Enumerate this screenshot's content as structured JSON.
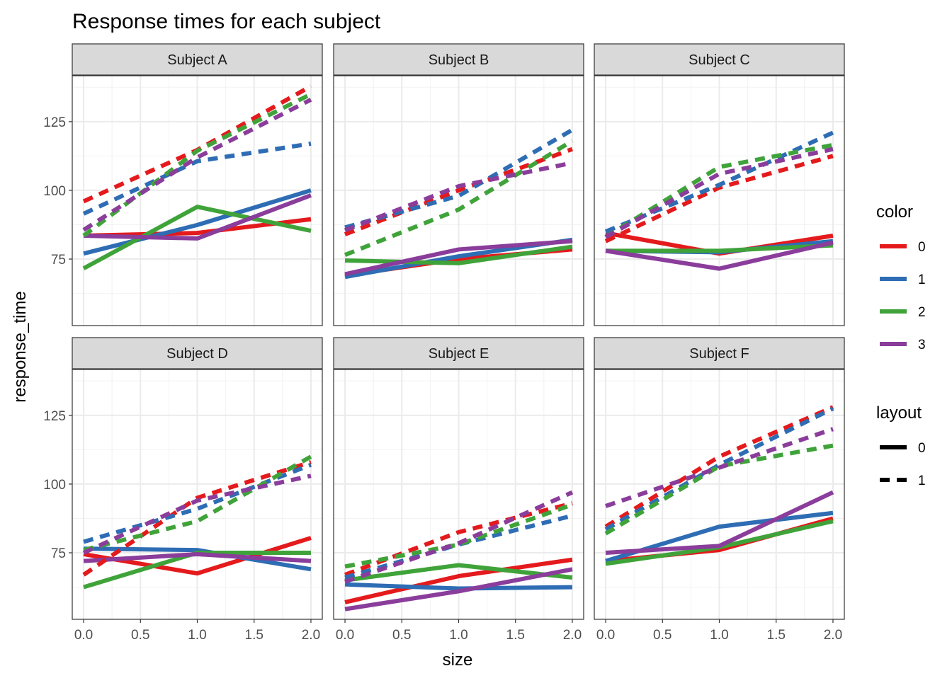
{
  "chart_data": {
    "type": "line",
    "title": "Response times for each subject",
    "xlabel": "size",
    "ylabel": "response_time",
    "x": [
      0,
      1,
      2
    ],
    "xlim": [
      -0.1,
      2.1
    ],
    "ylim": [
      50.8,
      141.7
    ],
    "xticks": [
      "0.0",
      "0.5",
      "1.0",
      "1.5",
      "2.0"
    ],
    "xtick_values": [
      0,
      0.5,
      1,
      1.5,
      2
    ],
    "yticks": [
      "75",
      "100",
      "125"
    ],
    "ytick_values": [
      75,
      100,
      125
    ],
    "grid": true,
    "legend_placement": "right",
    "legends": [
      {
        "title": "color",
        "entries": [
          "0",
          "1",
          "2",
          "3"
        ]
      },
      {
        "title": "layout",
        "entries": [
          "0",
          "1"
        ]
      }
    ],
    "colors": {
      "0": "#E41A1C",
      "1": "#2E6DB4",
      "2": "#3FA33A",
      "3": "#8A3D9B"
    },
    "linetypes": {
      "0": "solid",
      "1": "dashed"
    },
    "panels": [
      {
        "name": "Subject A",
        "series": [
          {
            "color": "0",
            "layout": "0",
            "values": [
              83.5,
              84.5,
              89.5
            ]
          },
          {
            "color": "1",
            "layout": "0",
            "values": [
              77,
              87.4,
              100
            ]
          },
          {
            "color": "2",
            "layout": "0",
            "values": [
              71.6,
              94,
              85.3
            ]
          },
          {
            "color": "3",
            "layout": "0",
            "values": [
              83.5,
              82.5,
              98.2
            ]
          },
          {
            "color": "0",
            "layout": "1",
            "values": [
              96,
              114.7,
              137.9
            ]
          },
          {
            "color": "1",
            "layout": "1",
            "values": [
              91.5,
              110.6,
              117
            ]
          },
          {
            "color": "2",
            "layout": "1",
            "values": [
              83.5,
              114.4,
              135
            ]
          },
          {
            "color": "3",
            "layout": "1",
            "values": [
              85.6,
              112,
              133
            ]
          }
        ]
      },
      {
        "name": "Subject B",
        "series": [
          {
            "color": "0",
            "layout": "0",
            "values": [
              69,
              75,
              78.5
            ]
          },
          {
            "color": "1",
            "layout": "0",
            "values": [
              68.5,
              76,
              82
            ]
          },
          {
            "color": "2",
            "layout": "0",
            "values": [
              74.5,
              73.5,
              79.5
            ]
          },
          {
            "color": "3",
            "layout": "0",
            "values": [
              69.5,
              78.5,
              81.5
            ]
          },
          {
            "color": "0",
            "layout": "1",
            "values": [
              84,
              100,
              115
            ]
          },
          {
            "color": "1",
            "layout": "1",
            "values": [
              86.5,
              98,
              122
            ]
          },
          {
            "color": "2",
            "layout": "1",
            "values": [
              76.5,
              93,
              118
            ]
          },
          {
            "color": "3",
            "layout": "1",
            "values": [
              85.5,
              101.5,
              110
            ]
          }
        ]
      },
      {
        "name": "Subject C",
        "series": [
          {
            "color": "0",
            "layout": "0",
            "values": [
              84.5,
              77,
              83.5
            ]
          },
          {
            "color": "1",
            "layout": "0",
            "values": [
              78,
              77.5,
              81.5
            ]
          },
          {
            "color": "2",
            "layout": "0",
            "values": [
              78,
              78,
              80
            ]
          },
          {
            "color": "3",
            "layout": "0",
            "values": [
              78,
              71.5,
              81
            ]
          },
          {
            "color": "0",
            "layout": "1",
            "values": [
              81.5,
              101,
              112.5
            ]
          },
          {
            "color": "1",
            "layout": "1",
            "values": [
              85,
              102,
              121
            ]
          },
          {
            "color": "2",
            "layout": "1",
            "values": [
              83,
              108.5,
              116.5
            ]
          },
          {
            "color": "3",
            "layout": "1",
            "values": [
              83,
              106,
              115
            ]
          }
        ]
      },
      {
        "name": "Subject D",
        "series": [
          {
            "color": "0",
            "layout": "0",
            "values": [
              74.5,
              67.5,
              80.4
            ]
          },
          {
            "color": "1",
            "layout": "0",
            "values": [
              76.5,
              76,
              69
            ]
          },
          {
            "color": "2",
            "layout": "0",
            "values": [
              62.5,
              75,
              75
            ]
          },
          {
            "color": "3",
            "layout": "0",
            "values": [
              72,
              74.5,
              72
            ]
          },
          {
            "color": "0",
            "layout": "1",
            "values": [
              67,
              95,
              108
            ]
          },
          {
            "color": "1",
            "layout": "1",
            "values": [
              79,
              91,
              107
            ]
          },
          {
            "color": "2",
            "layout": "1",
            "values": [
              76,
              86.5,
              110
            ]
          },
          {
            "color": "3",
            "layout": "1",
            "values": [
              75,
              94,
              103
            ]
          }
        ]
      },
      {
        "name": "Subject E",
        "series": [
          {
            "color": "0",
            "layout": "0",
            "values": [
              57,
              66.5,
              72.5
            ]
          },
          {
            "color": "1",
            "layout": "0",
            "values": [
              63.5,
              62,
              62.5
            ]
          },
          {
            "color": "2",
            "layout": "0",
            "values": [
              65,
              70.5,
              66
            ]
          },
          {
            "color": "3",
            "layout": "0",
            "values": [
              54.5,
              61,
              69
            ]
          },
          {
            "color": "0",
            "layout": "1",
            "values": [
              67,
              82.5,
              93
            ]
          },
          {
            "color": "1",
            "layout": "1",
            "values": [
              66,
              78,
              88.5
            ]
          },
          {
            "color": "2",
            "layout": "1",
            "values": [
              70,
              78,
              92.5
            ]
          },
          {
            "color": "3",
            "layout": "1",
            "values": [
              64.5,
              78.5,
              97
            ]
          }
        ]
      },
      {
        "name": "Subject F",
        "series": [
          {
            "color": "0",
            "layout": "0",
            "values": [
              72,
              76,
              87.5
            ]
          },
          {
            "color": "1",
            "layout": "0",
            "values": [
              72,
              84.5,
              89.5
            ]
          },
          {
            "color": "2",
            "layout": "0",
            "values": [
              71,
              77,
              86.5
            ]
          },
          {
            "color": "3",
            "layout": "0",
            "values": [
              75,
              77.5,
              97
            ]
          },
          {
            "color": "0",
            "layout": "1",
            "values": [
              84.5,
              110,
              128
            ]
          },
          {
            "color": "1",
            "layout": "1",
            "values": [
              83.5,
              107,
              127.5
            ]
          },
          {
            "color": "2",
            "layout": "1",
            "values": [
              82,
              106.5,
              114
            ]
          },
          {
            "color": "3",
            "layout": "1",
            "values": [
              92,
              106,
              120
            ]
          }
        ]
      }
    ]
  }
}
